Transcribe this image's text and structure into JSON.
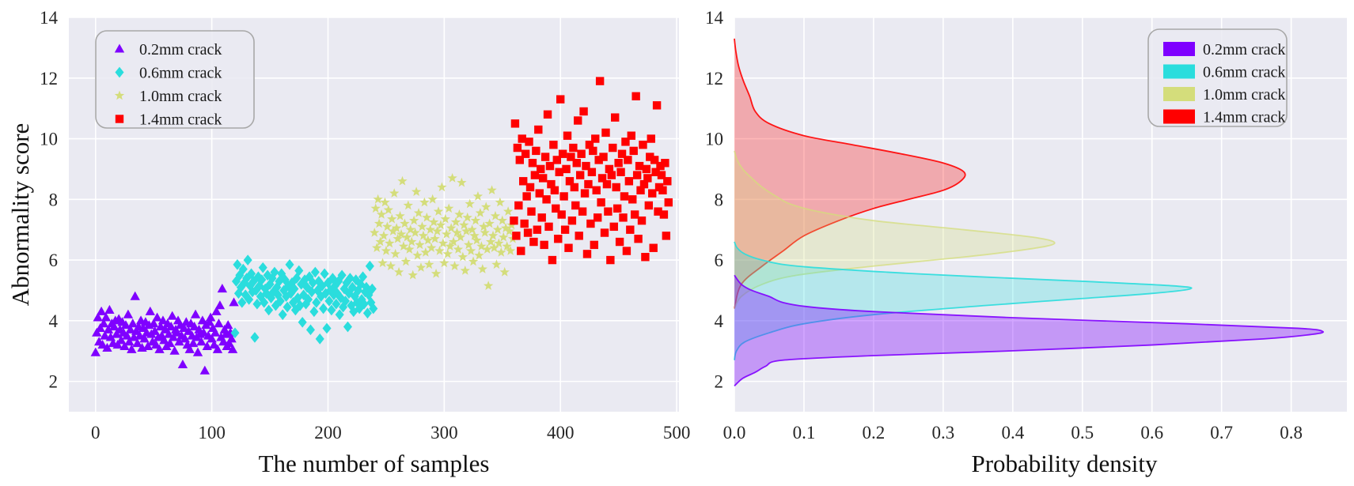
{
  "chart_data": [
    {
      "type": "scatter",
      "title": "",
      "xlabel": "The number of samples",
      "ylabel": "Abnormality score",
      "xlim": [
        -23,
        502
      ],
      "ylim": [
        1.0,
        14.0
      ],
      "xticks": [
        "0",
        "100",
        "200",
        "300",
        "400",
        "500"
      ],
      "yticks": [
        "2",
        "4",
        "6",
        "8",
        "10",
        "12",
        "14"
      ],
      "grid": true,
      "legend_position": "top-left",
      "series": [
        {
          "name": "0.2mm crack",
          "marker": "triangle",
          "color": "#7f00ff",
          "x_start": 0,
          "values": [
            2.95,
            3.6,
            4.1,
            3.3,
            3.75,
            4.3,
            3.2,
            3.9,
            3.5,
            4.1,
            3.1,
            3.7,
            4.35,
            3.45,
            3.9,
            3.25,
            3.8,
            4.0,
            3.55,
            3.2,
            4.05,
            3.7,
            3.35,
            3.95,
            3.6,
            3.15,
            3.85,
            3.5,
            4.2,
            3.3,
            3.7,
            3.05,
            3.9,
            3.45,
            4.8,
            3.65,
            3.25,
            3.8,
            3.5,
            4.0,
            3.1,
            3.75,
            3.4,
            3.95,
            3.6,
            3.15,
            3.85,
            4.3,
            3.55,
            3.3,
            3.9,
            3.65,
            3.2,
            4.1,
            3.45,
            3.05,
            3.8,
            3.5,
            4.0,
            3.35,
            3.7,
            3.15,
            3.9,
            3.55,
            3.25,
            3.8,
            4.15,
            3.45,
            3.0,
            3.7,
            3.6,
            4.0,
            3.3,
            3.85,
            3.5,
            2.55,
            3.75,
            3.4,
            3.95,
            3.2,
            3.65,
            3.05,
            3.9,
            3.5,
            3.25,
            3.8,
            4.2,
            3.45,
            2.95,
            3.7,
            3.55,
            3.3,
            4.0,
            3.6,
            2.35,
            3.85,
            3.15,
            3.5,
            3.95,
            4.1,
            3.4,
            3.75,
            3.2,
            3.6,
            4.3,
            3.05,
            3.9,
            4.5,
            3.45,
            5.05,
            3.3,
            3.7,
            3.55,
            3.15,
            3.85,
            3.25,
            3.6,
            3.4,
            3.05,
            4.6
          ],
          "density": {
            "y": [
              1.85,
              2.1,
              2.3,
              2.5,
              2.7,
              2.85,
              3.0,
              3.2,
              3.4,
              3.55,
              3.65,
              3.75,
              3.9,
              4.1,
              4.3,
              4.45,
              4.6,
              4.8,
              5.0,
              5.2,
              5.5
            ],
            "values": [
              0.0,
              0.012,
              0.03,
              0.045,
              0.07,
              0.2,
              0.39,
              0.6,
              0.76,
              0.83,
              0.845,
              0.81,
              0.65,
              0.4,
              0.2,
              0.11,
              0.07,
              0.05,
              0.025,
              0.01,
              0.0
            ]
          }
        },
        {
          "name": "0.6mm crack",
          "marker": "diamond",
          "color": "#2adddd",
          "x_start": 120,
          "values": [
            3.6,
            5.3,
            5.85,
            4.9,
            5.5,
            5.1,
            4.6,
            5.7,
            5.25,
            4.85,
            5.4,
            6.0,
            4.7,
            5.15,
            5.55,
            4.95,
            5.3,
            3.45,
            5.0,
            4.55,
            5.45,
            5.15,
            4.8,
            5.35,
            5.75,
            4.6,
            5.05,
            4.9,
            5.5,
            4.35,
            5.2,
            4.75,
            5.4,
            4.95,
            5.6,
            4.5,
            5.1,
            4.85,
            5.3,
            4.65,
            5.55,
            4.2,
            5.0,
            5.35,
            4.8,
            4.45,
            5.15,
            5.85,
            4.9,
            5.25,
            4.6,
            5.05,
            4.35,
            5.4,
            4.75,
            5.65,
            4.5,
            5.2,
            3.95,
            4.85,
            5.35,
            4.55,
            5.1,
            4.7,
            5.45,
            3.7,
            4.95,
            5.25,
            4.3,
            5.6,
            4.6,
            5.0,
            5.3,
            3.4,
            4.8,
            5.15,
            4.4,
            5.55,
            4.9,
            3.75,
            5.25,
            4.65,
            5.0,
            4.35,
            5.4,
            4.85,
            5.15,
            4.55,
            4.9,
            5.3,
            4.2,
            4.75,
            5.5,
            4.45,
            5.05,
            4.65,
            5.25,
            3.8,
            4.9,
            5.4,
            4.5,
            5.1,
            4.3,
            4.8,
            5.35,
            4.6,
            5.0,
            4.4,
            5.2,
            4.7,
            5.45,
            4.55,
            4.95,
            5.1,
            4.25,
            4.85,
            5.8,
            4.6,
            5.05,
            4.4
          ],
          "density": {
            "y": [
              2.7,
              3.0,
              3.3,
              3.6,
              3.9,
              4.2,
              4.5,
              4.7,
              4.9,
              5.05,
              5.15,
              5.3,
              5.45,
              5.6,
              5.8,
              6.0,
              6.2,
              6.4,
              6.6
            ],
            "values": [
              0.0,
              0.003,
              0.015,
              0.05,
              0.1,
              0.2,
              0.36,
              0.48,
              0.6,
              0.655,
              0.63,
              0.5,
              0.35,
              0.22,
              0.09,
              0.04,
              0.015,
              0.004,
              0.0
            ]
          }
        },
        {
          "name": "1.0mm crack",
          "marker": "star",
          "color": "#d4dd7b",
          "x_start": 240,
          "values": [
            6.9,
            7.7,
            6.4,
            8.0,
            7.2,
            6.6,
            7.5,
            5.9,
            6.8,
            7.9,
            6.3,
            7.1,
            7.65,
            6.55,
            5.8,
            7.35,
            6.95,
            8.2,
            6.2,
            7.05,
            6.7,
            5.6,
            7.45,
            6.85,
            8.6,
            6.45,
            7.2,
            5.95,
            6.75,
            7.8,
            6.35,
            7.0,
            6.6,
            5.5,
            7.3,
            6.9,
            8.25,
            6.15,
            7.55,
            6.5,
            5.75,
            7.1,
            6.8,
            7.9,
            6.25,
            7.4,
            6.65,
            5.85,
            7.0,
            6.4,
            8.0,
            7.25,
            6.7,
            5.55,
            6.95,
            7.6,
            6.3,
            7.15,
            8.4,
            6.55,
            5.9,
            7.35,
            6.85,
            6.2,
            7.7,
            6.45,
            7.05,
            8.7,
            6.6,
            5.8,
            7.25,
            6.9,
            6.35,
            7.5,
            6.75,
            8.55,
            6.1,
            7.15,
            5.65,
            6.95,
            7.4,
            6.5,
            7.85,
            6.3,
            7.0,
            5.95,
            6.8,
            7.3,
            6.65,
            8.1,
            6.15,
            7.55,
            6.45,
            5.7,
            7.1,
            6.9,
            7.75,
            6.35,
            5.15,
            7.2,
            6.6,
            8.3,
            6.8,
            6.4,
            7.45,
            5.85,
            7.0,
            6.55,
            7.9,
            6.25,
            7.3,
            6.75,
            5.6,
            7.05,
            6.45,
            7.6,
            6.95,
            6.3,
            7.15,
            6.7
          ],
          "density": {
            "y": [
              4.4,
              4.8,
              5.2,
              5.5,
              5.8,
              6.1,
              6.35,
              6.55,
              6.75,
              7.0,
              7.3,
              7.6,
              7.85,
              8.1,
              8.4,
              8.7,
              9.0,
              9.3,
              9.6
            ],
            "values": [
              0.0,
              0.01,
              0.04,
              0.09,
              0.2,
              0.33,
              0.42,
              0.46,
              0.43,
              0.33,
              0.2,
              0.12,
              0.08,
              0.06,
              0.04,
              0.025,
              0.012,
              0.004,
              0.0
            ]
          }
        },
        {
          "name": "1.4mm crack",
          "marker": "square",
          "color": "#ff0000",
          "x_start": 360,
          "values": [
            7.3,
            10.5,
            6.8,
            9.7,
            7.8,
            9.3,
            6.3,
            10.0,
            8.6,
            7.2,
            9.5,
            8.1,
            6.9,
            9.9,
            8.4,
            7.6,
            9.2,
            6.6,
            8.8,
            9.6,
            7.0,
            10.3,
            8.2,
            9.0,
            7.4,
            8.7,
            6.5,
            9.4,
            8.0,
            10.8,
            7.1,
            9.1,
            8.5,
            6.0,
            9.8,
            8.3,
            7.7,
            9.3,
            6.7,
            8.9,
            11.3,
            7.5,
            9.5,
            8.1,
            7.0,
            9.0,
            10.1,
            6.4,
            8.6,
            9.4,
            7.3,
            9.7,
            8.4,
            7.8,
            9.2,
            10.6,
            6.8,
            8.8,
            9.5,
            7.6,
            10.9,
            8.2,
            9.1,
            6.2,
            8.5,
            9.8,
            7.2,
            8.9,
            9.6,
            6.5,
            10.0,
            8.3,
            7.4,
            9.3,
            11.9,
            7.9,
            8.7,
            9.4,
            6.9,
            10.2,
            8.5,
            7.6,
            9.0,
            6.0,
            8.8,
            9.7,
            7.1,
            10.7,
            8.4,
            7.7,
            9.2,
            6.6,
            8.9,
            9.5,
            7.4,
            8.1,
            9.9,
            6.3,
            9.3,
            8.6,
            7.0,
            10.1,
            8.0,
            9.6,
            7.5,
            11.4,
            8.8,
            6.7,
            9.1,
            8.3,
            7.3,
            9.8,
            8.5,
            6.1,
            9.0,
            8.7,
            7.8,
            9.4,
            10.0,
            8.2,
            6.4,
            9.3,
            8.9,
            11.1,
            7.6,
            8.4,
            9.1,
            8.8,
            8.3,
            7.5,
            9.2,
            6.8,
            8.6,
            7.9
          ],
          "density": {
            "y": [
              4.4,
              5.2,
              5.8,
              6.3,
              6.8,
              7.3,
              7.7,
              8.0,
              8.3,
              8.6,
              8.9,
              9.2,
              9.5,
              9.8,
              10.1,
              10.5,
              10.9,
              11.4,
              11.9,
              12.4,
              12.9,
              13.3
            ],
            "values": [
              0.0,
              0.01,
              0.04,
              0.07,
              0.1,
              0.15,
              0.2,
              0.25,
              0.3,
              0.325,
              0.33,
              0.3,
              0.24,
              0.17,
              0.1,
              0.05,
              0.03,
              0.022,
              0.013,
              0.006,
              0.002,
              0.0
            ]
          }
        }
      ]
    },
    {
      "type": "area",
      "title": "",
      "xlabel": "Probability density",
      "ylabel": "",
      "xlim": [
        0.0,
        0.88
      ],
      "ylim": [
        1.0,
        14.0
      ],
      "xticks": [
        "0.0",
        "0.1",
        "0.2",
        "0.3",
        "0.4",
        "0.5",
        "0.6",
        "0.7",
        "0.8"
      ],
      "yticks": [
        "2",
        "4",
        "6",
        "8",
        "10",
        "12",
        "14"
      ],
      "grid": true,
      "legend_position": "top-right",
      "orientation": "horizontal density (KDE) of Abnormality score per series",
      "series_refs": [
        "0.2mm crack",
        "0.6mm crack",
        "1.0mm crack",
        "1.4mm crack"
      ]
    }
  ]
}
